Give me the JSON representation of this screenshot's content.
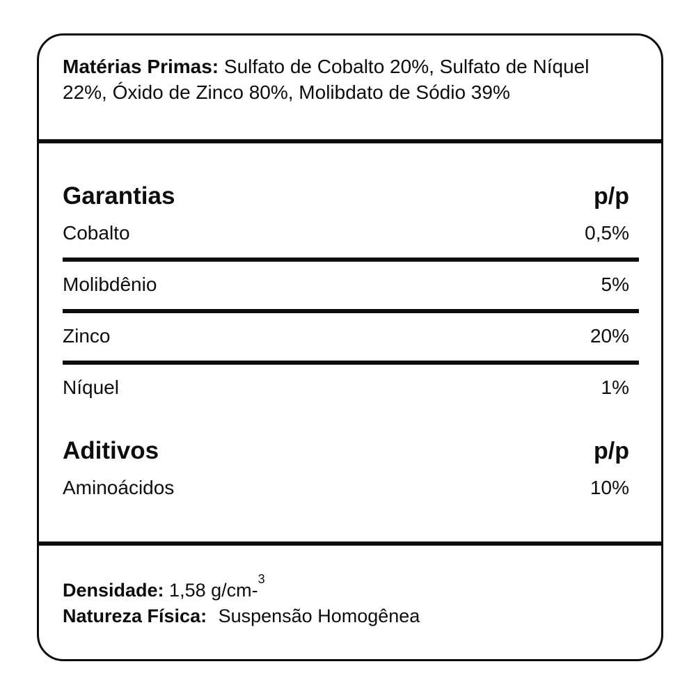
{
  "label": {
    "colors": {
      "ink": "#0d0d0d",
      "background": "#ffffff"
    },
    "materias_primas": {
      "title": "Matérias Primas:",
      "text": " Sulfato de Cobalto 20%, Sulfato de Níquel 22%, Óxido de Zinco 80%, Molibdato de Sódio 39%"
    },
    "garantias": {
      "title": "Garantias",
      "unit": "p/p",
      "rows": [
        {
          "name": "Cobalto",
          "value": "0,5%"
        },
        {
          "name": "Molibdênio",
          "value": "5%"
        },
        {
          "name": "Zinco",
          "value": "20%"
        },
        {
          "name": "Níquel",
          "value": "1%"
        }
      ]
    },
    "aditivos": {
      "title": "Aditivos",
      "unit": "p/p",
      "rows": [
        {
          "name": "Aminoácidos",
          "value": "10%"
        }
      ]
    },
    "footer": {
      "densidade_label": "Densidade:",
      "densidade_value": " 1,58 g/cm-",
      "densidade_sup": "3",
      "natureza_label": "Natureza Física:",
      "natureza_value": "Suspensão Homogênea"
    }
  }
}
